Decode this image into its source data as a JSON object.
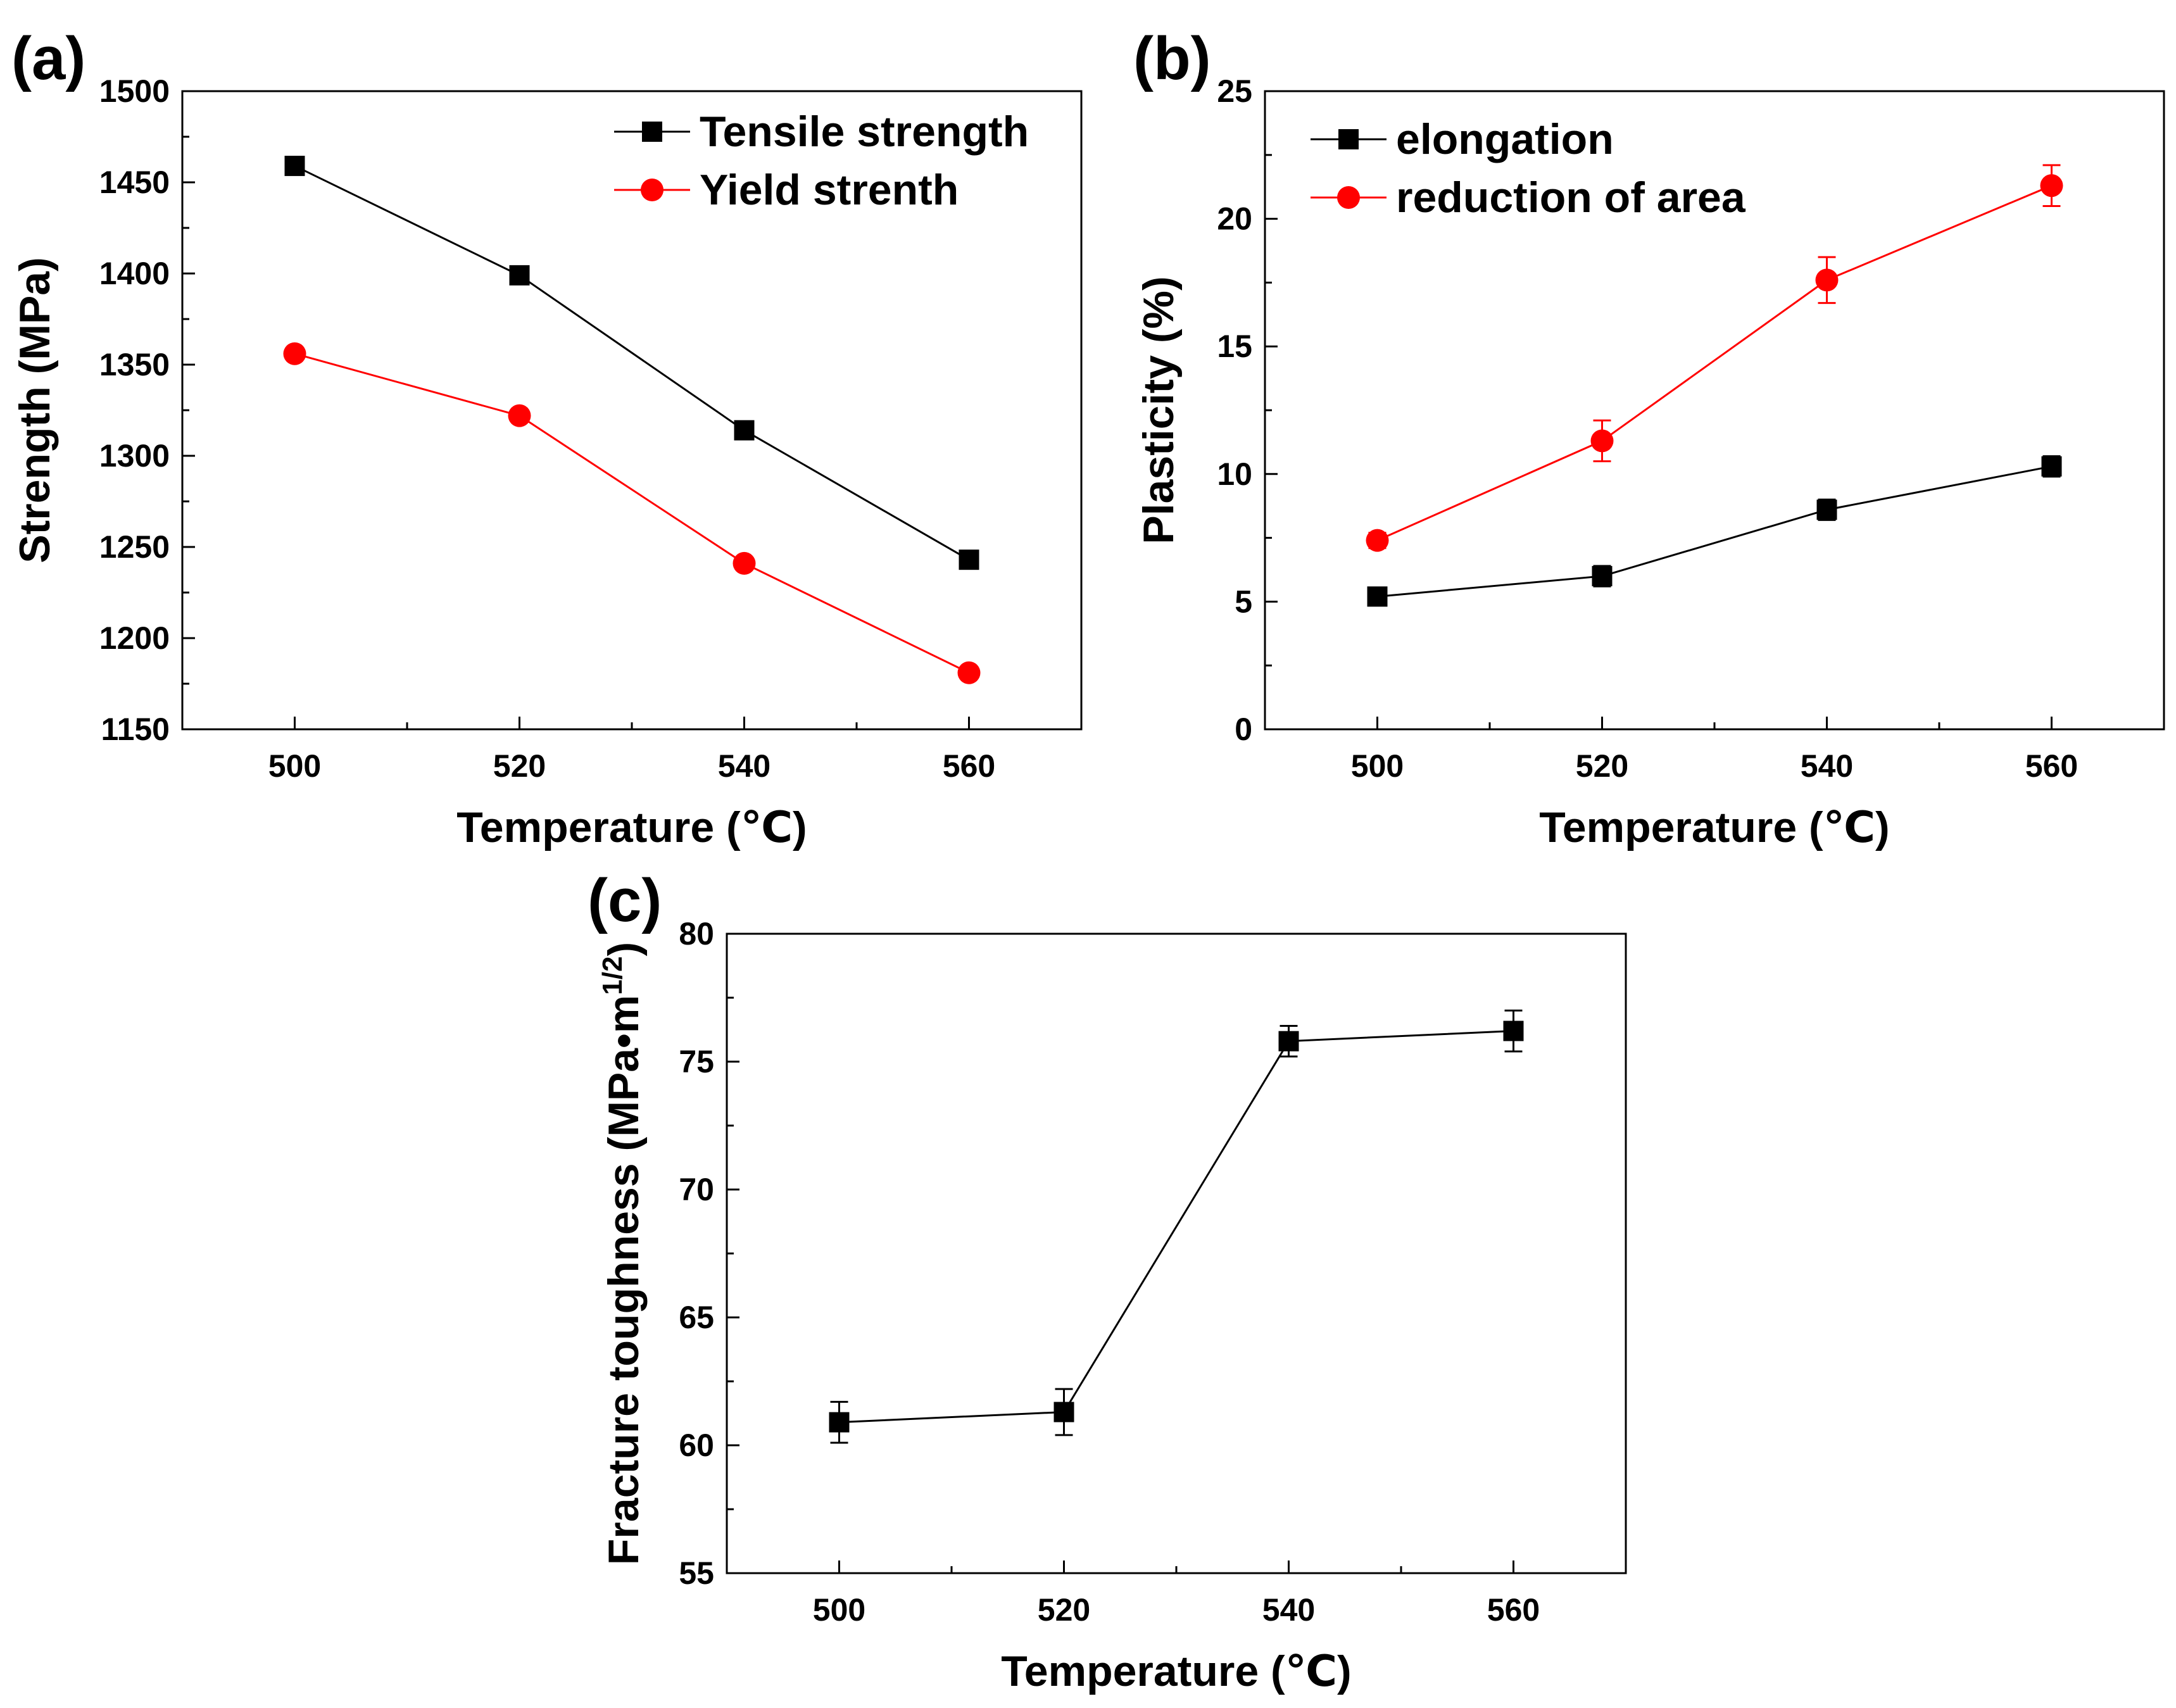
{
  "chart_data": [
    {
      "panel": "(a)",
      "type": "line",
      "xlabel": "Temperature (℃)",
      "ylabel": "Strength (MPa)",
      "xlim": [
        490,
        570
      ],
      "ylim": [
        1150,
        1500
      ],
      "x_ticks": [
        500,
        520,
        540,
        560
      ],
      "x_minor_ticks": [
        510,
        530,
        550
      ],
      "y_ticks": [
        1150,
        1200,
        1250,
        1300,
        1350,
        1400,
        1450,
        1500
      ],
      "grid": false,
      "legend_position": "top-right",
      "x": [
        500,
        520,
        540,
        560
      ],
      "series": [
        {
          "name": "Tensile strength",
          "marker": "square",
          "color": "#000000",
          "values": [
            1459,
            1399,
            1314,
            1243
          ]
        },
        {
          "name": "Yield strenth",
          "marker": "circle",
          "color": "#ff0000",
          "values": [
            1356,
            1322,
            1241,
            1181
          ]
        }
      ]
    },
    {
      "panel": "(b)",
      "type": "line",
      "xlabel": "Temperature (℃)",
      "ylabel": "Plasticity (%)",
      "xlim": [
        490,
        570
      ],
      "ylim": [
        0,
        25
      ],
      "x_ticks": [
        500,
        520,
        540,
        560
      ],
      "x_minor_ticks": [
        510,
        530,
        550
      ],
      "y_ticks": [
        0,
        5,
        10,
        15,
        20,
        25
      ],
      "grid": false,
      "legend_position": "top-left",
      "x": [
        500,
        520,
        540,
        560
      ],
      "series": [
        {
          "name": "elongation",
          "marker": "square",
          "color": "#000000",
          "values": [
            5.2,
            6.0,
            8.6,
            10.3
          ],
          "errors": [
            0.2,
            0.4,
            0.4,
            0.4
          ]
        },
        {
          "name": "reduction of area",
          "marker": "circle",
          "color": "#ff0000",
          "values": [
            7.4,
            11.3,
            17.6,
            21.3
          ],
          "errors": [
            0.3,
            0.8,
            0.9,
            0.8
          ]
        }
      ]
    },
    {
      "panel": "(c)",
      "type": "line",
      "xlabel": "Temperature (℃)",
      "ylabel": "Fracture toughness (MPa•m",
      "ylabel_superscript": "1/2",
      "ylabel_suffix": ")",
      "xlim": [
        490,
        570
      ],
      "ylim": [
        55,
        80
      ],
      "x_ticks": [
        500,
        520,
        540,
        560
      ],
      "x_minor_ticks": [
        510,
        530,
        550
      ],
      "y_ticks": [
        55,
        60,
        65,
        70,
        75,
        80
      ],
      "grid": false,
      "x": [
        500,
        520,
        540,
        560
      ],
      "series": [
        {
          "name": "Fracture toughness",
          "marker": "square",
          "color": "#000000",
          "values": [
            60.9,
            61.3,
            75.8,
            76.2
          ],
          "errors": [
            0.8,
            0.9,
            0.6,
            0.8
          ]
        }
      ]
    }
  ]
}
